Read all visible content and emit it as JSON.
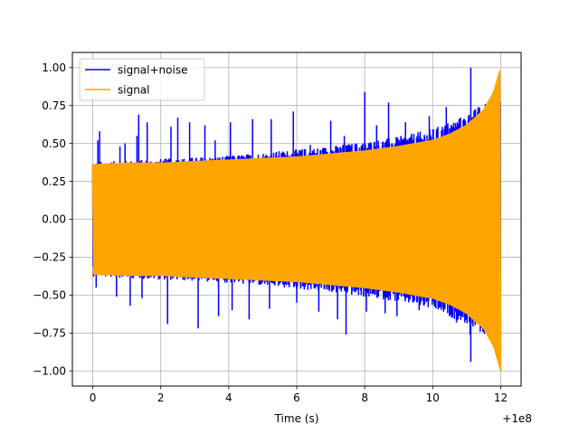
{
  "chart_data": {
    "type": "line",
    "title": "",
    "xlabel": "Time (s)",
    "ylabel": "",
    "x_offset_label": "+1e8",
    "xlim": [
      -0.6,
      12.6
    ],
    "ylim": [
      -1.1,
      1.1
    ],
    "x_ticks": [
      0,
      2,
      4,
      6,
      8,
      10,
      12
    ],
    "x_tick_labels": [
      "0",
      "2",
      "4",
      "6",
      "8",
      "10",
      "12"
    ],
    "y_ticks": [
      -1.0,
      -0.75,
      -0.5,
      -0.25,
      0.0,
      0.25,
      0.5,
      0.75,
      1.0
    ],
    "y_tick_labels": [
      "−1.00",
      "−0.75",
      "−0.50",
      "−0.25",
      "0.00",
      "0.25",
      "0.50",
      "0.75",
      "1.00"
    ],
    "grid": true,
    "legend_position": "top-left",
    "series": [
      {
        "name": "signal+noise",
        "color": "#0000ff",
        "x_range": [
          0,
          12
        ],
        "envelope": {
          "x": [
            0,
            1,
            2,
            3,
            4,
            5,
            6,
            7,
            8,
            9,
            10,
            11,
            11.5,
            12
          ],
          "upper": [
            0.36,
            0.37,
            0.38,
            0.39,
            0.4,
            0.42,
            0.44,
            0.46,
            0.49,
            0.52,
            0.57,
            0.66,
            0.73,
            0.75
          ],
          "lower": [
            -0.36,
            -0.37,
            -0.38,
            -0.39,
            -0.4,
            -0.42,
            -0.44,
            -0.46,
            -0.49,
            -0.52,
            -0.57,
            -0.66,
            -0.73,
            -0.75
          ]
        },
        "spikes": [
          {
            "x": 0.15,
            "y": 0.52
          },
          {
            "x": 0.2,
            "y": 0.58
          },
          {
            "x": 0.8,
            "y": 0.48
          },
          {
            "x": 0.95,
            "y": 0.5
          },
          {
            "x": 1.3,
            "y": 0.55
          },
          {
            "x": 1.35,
            "y": 0.69
          },
          {
            "x": 1.6,
            "y": 0.64
          },
          {
            "x": 2.3,
            "y": 0.61
          },
          {
            "x": 2.5,
            "y": 0.67
          },
          {
            "x": 2.85,
            "y": 0.64
          },
          {
            "x": 3.3,
            "y": 0.62
          },
          {
            "x": 3.6,
            "y": 0.52
          },
          {
            "x": 4.05,
            "y": 0.64
          },
          {
            "x": 4.7,
            "y": 0.66
          },
          {
            "x": 5.25,
            "y": 0.66
          },
          {
            "x": 5.9,
            "y": 0.71
          },
          {
            "x": 6.4,
            "y": 0.49
          },
          {
            "x": 7.0,
            "y": 0.65
          },
          {
            "x": 7.4,
            "y": 0.55
          },
          {
            "x": 8.0,
            "y": 0.84
          },
          {
            "x": 8.35,
            "y": 0.62
          },
          {
            "x": 8.7,
            "y": 0.77
          },
          {
            "x": 9.2,
            "y": 0.64
          },
          {
            "x": 9.9,
            "y": 0.68
          },
          {
            "x": 10.4,
            "y": 0.74
          },
          {
            "x": 11.05,
            "y": 0.68
          },
          {
            "x": 11.12,
            "y": 1.0
          },
          {
            "x": 0.1,
            "y": -0.45
          },
          {
            "x": 0.7,
            "y": -0.51
          },
          {
            "x": 1.1,
            "y": -0.57
          },
          {
            "x": 1.45,
            "y": -0.52
          },
          {
            "x": 2.2,
            "y": -0.69
          },
          {
            "x": 3.1,
            "y": -0.72
          },
          {
            "x": 3.7,
            "y": -0.64
          },
          {
            "x": 4.1,
            "y": -0.6
          },
          {
            "x": 4.6,
            "y": -0.66
          },
          {
            "x": 5.2,
            "y": -0.59
          },
          {
            "x": 6.0,
            "y": -0.55
          },
          {
            "x": 6.65,
            "y": -0.61
          },
          {
            "x": 7.2,
            "y": -0.66
          },
          {
            "x": 7.45,
            "y": -0.76
          },
          {
            "x": 8.05,
            "y": -0.61
          },
          {
            "x": 8.6,
            "y": -0.62
          },
          {
            "x": 8.95,
            "y": -0.64
          },
          {
            "x": 9.6,
            "y": -0.6
          },
          {
            "x": 10.3,
            "y": -0.58
          },
          {
            "x": 10.7,
            "y": -0.68
          },
          {
            "x": 11.1,
            "y": -0.76
          },
          {
            "x": 11.12,
            "y": -0.94
          }
        ]
      },
      {
        "name": "signal",
        "color": "#ffa500",
        "x_range": [
          0,
          12
        ],
        "envelope": {
          "x": [
            0,
            1,
            2,
            3,
            4,
            5,
            6,
            7,
            8,
            9,
            10,
            10.5,
            11,
            11.5,
            11.8,
            12
          ],
          "upper": [
            0.36,
            0.37,
            0.37,
            0.38,
            0.39,
            0.4,
            0.41,
            0.43,
            0.45,
            0.48,
            0.52,
            0.56,
            0.62,
            0.72,
            0.84,
            1.0
          ],
          "lower": [
            -0.36,
            -0.37,
            -0.37,
            -0.38,
            -0.39,
            -0.4,
            -0.41,
            -0.43,
            -0.45,
            -0.48,
            -0.52,
            -0.56,
            -0.62,
            -0.72,
            -0.84,
            -1.0
          ]
        }
      }
    ]
  }
}
